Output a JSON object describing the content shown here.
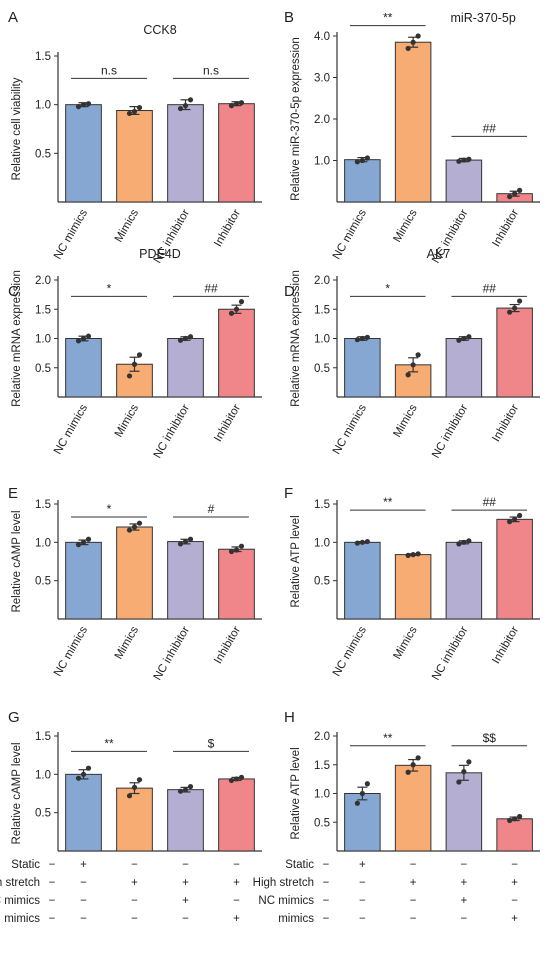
{
  "colors": {
    "blue": "#87a7d3",
    "orange": "#f7ac74",
    "purple": "#b4aed3",
    "red": "#f0868a",
    "stroke": "#333333"
  },
  "chart_data": [
    {
      "id": "A",
      "panel_label": "A",
      "type": "bar",
      "title": "CCK8",
      "ylabel": "Relative cell viability",
      "ylim": [
        0,
        1.5
      ],
      "yticks": [
        "0.5",
        "1.0",
        "1.5"
      ],
      "categories": [
        "NC mimics",
        "Mimics",
        "NC inhibitor",
        "Inhibitor"
      ],
      "values": [
        1.0,
        0.94,
        1.0,
        1.01
      ],
      "errors": [
        0.02,
        0.04,
        0.05,
        0.02
      ],
      "points": [
        [
          0.98,
          1.0,
          1.01
        ],
        [
          0.91,
          0.93,
          0.97
        ],
        [
          0.96,
          0.99,
          1.05
        ],
        [
          0.99,
          1.01,
          1.02
        ]
      ],
      "significance": [
        {
          "label": "n.s",
          "from": 0,
          "to": 1,
          "y": 1.27
        },
        {
          "label": "n.s",
          "from": 2,
          "to": 3,
          "y": 1.27
        }
      ]
    },
    {
      "id": "B",
      "panel_label": "B",
      "type": "bar",
      "title": "miR-370-5p",
      "ylabel": "Relative miR-370-5p expression",
      "ylim": [
        0,
        4.0
      ],
      "yticks": [
        "1.0",
        "2.0",
        "3.0",
        "4.0"
      ],
      "categories": [
        "NC mimics",
        "Mimics",
        "NC inhibitor",
        "Inhibitor"
      ],
      "values": [
        1.02,
        3.85,
        1.01,
        0.2
      ],
      "errors": [
        0.05,
        0.12,
        0.04,
        0.06
      ],
      "points": [
        [
          0.97,
          1.0,
          1.06
        ],
        [
          3.7,
          3.85,
          4.0
        ],
        [
          0.98,
          1.01,
          1.03
        ],
        [
          0.13,
          0.2,
          0.28
        ]
      ],
      "significance": [
        {
          "label": "**",
          "from": 0,
          "to": 1,
          "y": 4.25
        },
        {
          "label": "##",
          "from": 2,
          "to": 3,
          "y": 1.58
        }
      ]
    },
    {
      "id": "C",
      "panel_label": "C",
      "type": "bar",
      "title": "PDE4D",
      "ylabel": "Relative mRNA  expression",
      "ylim": [
        0,
        2.0
      ],
      "yticks": [
        "0.5",
        "1.0",
        "1.5",
        "2.0"
      ],
      "categories": [
        "NC mimics",
        "Mimics",
        "NC inhibitor",
        "Inhibitor"
      ],
      "values": [
        1.0,
        0.56,
        1.0,
        1.5
      ],
      "errors": [
        0.04,
        0.12,
        0.03,
        0.07
      ],
      "points": [
        [
          0.96,
          1.0,
          1.04
        ],
        [
          0.36,
          0.56,
          0.72
        ],
        [
          0.97,
          1.0,
          1.03
        ],
        [
          1.43,
          1.5,
          1.63
        ]
      ],
      "significance": [
        {
          "label": "*",
          "from": 0,
          "to": 1,
          "y": 1.72
        },
        {
          "label": "##",
          "from": 2,
          "to": 3,
          "y": 1.72
        }
      ]
    },
    {
      "id": "D",
      "panel_label": "D",
      "type": "bar",
      "title": "AK7",
      "ylabel": "Relative mRNA  expression",
      "ylim": [
        0,
        2.0
      ],
      "yticks": [
        "0.5",
        "1.0",
        "1.5",
        "2.0"
      ],
      "categories": [
        "NC mimics",
        "Mimics",
        "NC inhibitor",
        "Inhibitor"
      ],
      "values": [
        1.0,
        0.55,
        1.0,
        1.52
      ],
      "errors": [
        0.03,
        0.12,
        0.03,
        0.06
      ],
      "points": [
        [
          0.98,
          1.0,
          1.02
        ],
        [
          0.38,
          0.55,
          0.72
        ],
        [
          0.97,
          1.0,
          1.03
        ],
        [
          1.45,
          1.52,
          1.64
        ]
      ],
      "significance": [
        {
          "label": "*",
          "from": 0,
          "to": 1,
          "y": 1.72
        },
        {
          "label": "##",
          "from": 2,
          "to": 3,
          "y": 1.72
        }
      ]
    },
    {
      "id": "E",
      "panel_label": "E",
      "type": "bar",
      "title": "",
      "ylabel": "Relative cAMP level",
      "ylim": [
        0,
        1.5
      ],
      "yticks": [
        "0.5",
        "1.0",
        "1.5"
      ],
      "categories": [
        "NC mimics",
        "Mimics",
        "NC inhibitor",
        "Inhibitor"
      ],
      "values": [
        1.0,
        1.2,
        1.01,
        0.91
      ],
      "errors": [
        0.03,
        0.04,
        0.03,
        0.03
      ],
      "points": [
        [
          0.97,
          1.0,
          1.04
        ],
        [
          1.16,
          1.2,
          1.25
        ],
        [
          0.98,
          1.01,
          1.04
        ],
        [
          0.88,
          0.9,
          0.95
        ]
      ],
      "significance": [
        {
          "label": "*",
          "from": 0,
          "to": 1,
          "y": 1.33
        },
        {
          "label": "#",
          "from": 2,
          "to": 3,
          "y": 1.33
        }
      ]
    },
    {
      "id": "F",
      "panel_label": "F",
      "type": "bar",
      "title": "",
      "ylabel": "Relative ATP level",
      "ylim": [
        0,
        1.5
      ],
      "yticks": [
        "0.5",
        "1.0",
        "1.5"
      ],
      "categories": [
        "NC mimics",
        "Mimics",
        "NC inhibitor",
        "Inhibitor"
      ],
      "values": [
        1.0,
        0.84,
        1.0,
        1.3
      ],
      "errors": [
        0.01,
        0.01,
        0.02,
        0.03
      ],
      "points": [
        [
          0.99,
          1.0,
          1.01
        ],
        [
          0.83,
          0.84,
          0.85
        ],
        [
          0.98,
          1.0,
          1.02
        ],
        [
          1.27,
          1.3,
          1.35
        ]
      ],
      "significance": [
        {
          "label": "**",
          "from": 0,
          "to": 1,
          "y": 1.42
        },
        {
          "label": "##",
          "from": 2,
          "to": 3,
          "y": 1.42
        }
      ]
    },
    {
      "id": "G",
      "panel_label": "G",
      "type": "bar",
      "title": "",
      "ylabel": "Relative cAMP level",
      "ylim": [
        0,
        1.5
      ],
      "yticks": [
        "0.5",
        "1.0",
        "1.5"
      ],
      "categories": [
        "",
        "",
        "",
        ""
      ],
      "values": [
        1.0,
        0.82,
        0.8,
        0.94
      ],
      "errors": [
        0.06,
        0.07,
        0.03,
        0.02
      ],
      "points": [
        [
          0.95,
          1.0,
          1.08
        ],
        [
          0.72,
          0.83,
          0.93
        ],
        [
          0.78,
          0.8,
          0.84
        ],
        [
          0.92,
          0.94,
          0.96
        ]
      ],
      "significance": [
        {
          "label": "**",
          "from": 0,
          "to": 1,
          "y": 1.3
        },
        {
          "label": "$",
          "from": 2,
          "to": 3,
          "y": 1.3
        }
      ],
      "conditions": [
        {
          "label": "Static",
          "marks": [
            "+",
            "−",
            "−",
            "−"
          ]
        },
        {
          "label": "High stretch",
          "marks": [
            "−",
            "+",
            "+",
            "+"
          ]
        },
        {
          "label": "NC mimics",
          "marks": [
            "−",
            "−",
            "+",
            "−"
          ]
        },
        {
          "label": "mimics",
          "marks": [
            "−",
            "−",
            "−",
            "+"
          ]
        }
      ]
    },
    {
      "id": "H",
      "panel_label": "H",
      "type": "bar",
      "title": "",
      "ylabel": "Relative ATP level",
      "ylim": [
        0,
        2.0
      ],
      "yticks": [
        "0.5",
        "1.0",
        "1.5",
        "2.0"
      ],
      "categories": [
        "",
        "",
        "",
        ""
      ],
      "values": [
        1.0,
        1.49,
        1.36,
        0.56
      ],
      "errors": [
        0.11,
        0.1,
        0.13,
        0.03
      ],
      "points": [
        [
          0.83,
          1.0,
          1.17
        ],
        [
          1.37,
          1.5,
          1.62
        ],
        [
          1.2,
          1.38,
          1.55
        ],
        [
          0.53,
          0.56,
          0.6
        ]
      ],
      "significance": [
        {
          "label": "**",
          "from": 0,
          "to": 1,
          "y": 1.83
        },
        {
          "label": "$$",
          "from": 2,
          "to": 3,
          "y": 1.83
        }
      ],
      "conditions": [
        {
          "label": "Static",
          "marks": [
            "+",
            "−",
            "−",
            "−"
          ]
        },
        {
          "label": "High stretch",
          "marks": [
            "−",
            "+",
            "+",
            "+"
          ]
        },
        {
          "label": "NC mimics",
          "marks": [
            "−",
            "−",
            "+",
            "−"
          ]
        },
        {
          "label": "mimics",
          "marks": [
            "−",
            "−",
            "−",
            "+"
          ]
        }
      ]
    }
  ]
}
